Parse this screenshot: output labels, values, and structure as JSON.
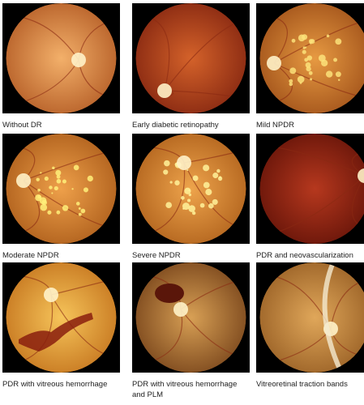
{
  "panels": [
    {
      "caption": "Without DR"
    },
    {
      "caption": "Early diabetic retinopathy"
    },
    {
      "caption": "Mild NPDR"
    },
    {
      "caption": "Moderate NPDR"
    },
    {
      "caption": "Severe NPDR"
    },
    {
      "caption": "PDR and neovascularization"
    },
    {
      "caption": "PDR with vitreous hemorrhage"
    },
    {
      "caption": "PDR with vitreous hemorrhage and PLM"
    },
    {
      "caption": "Vitreoretinal traction bands"
    }
  ]
}
